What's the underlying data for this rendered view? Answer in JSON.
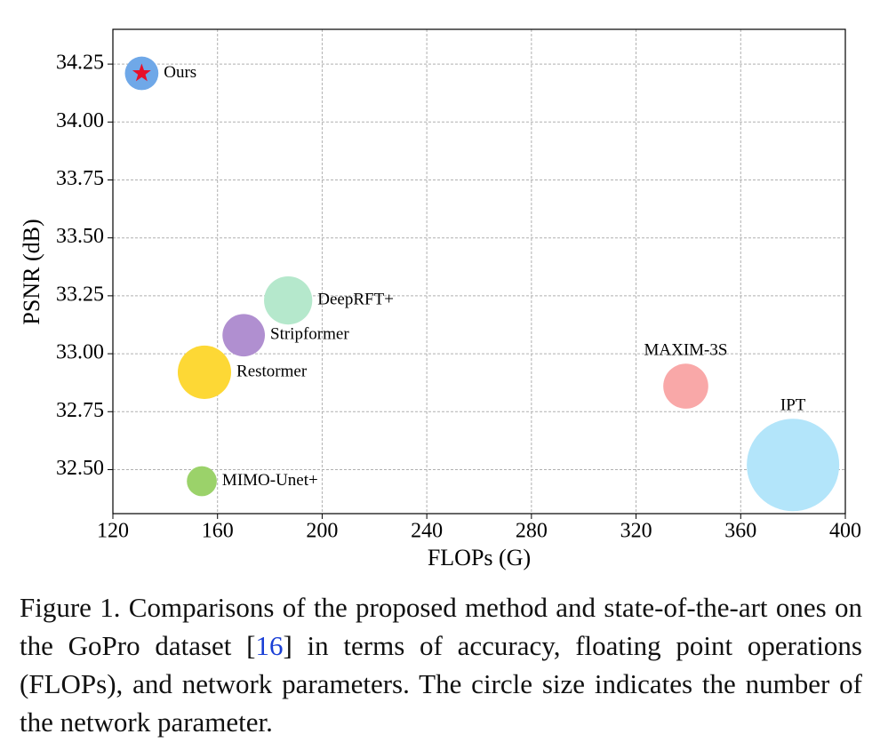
{
  "chart_data": {
    "type": "bubble",
    "xlabel": "FLOPs (G)",
    "ylabel": "PSNR (dB)",
    "xlim": [
      120,
      400
    ],
    "xticks": [
      120,
      160,
      200,
      240,
      280,
      320,
      360,
      400
    ],
    "ylim": [
      32.31,
      34.4
    ],
    "yticks": [
      {
        "value": 32.5,
        "label": "32.50"
      },
      32.75,
      {
        "value": 33.0,
        "label": "33.00"
      },
      33.25,
      {
        "value": 33.5,
        "label": "33.50"
      },
      33.75,
      {
        "value": 34.0,
        "label": "34.00"
      },
      34.25
    ],
    "grid": true,
    "series": [
      {
        "name": "Ours",
        "color": "#6fa8e8",
        "x": [
          131
        ],
        "values": [
          34.21
        ],
        "sizes": [
          15
        ]
      },
      {
        "name": "DeepRFT+",
        "color": "#b5e8cc",
        "x": [
          187
        ],
        "values": [
          33.23
        ],
        "sizes": [
          31
        ]
      },
      {
        "name": "Stripformer",
        "color": "#b08fd0",
        "x": [
          170
        ],
        "values": [
          33.08
        ],
        "sizes": [
          24
        ]
      },
      {
        "name": "Restormer",
        "color": "#fdd835",
        "x": [
          155
        ],
        "values": [
          32.92
        ],
        "sizes": [
          38
        ]
      },
      {
        "name": "MAXIM-3S",
        "color": "#f9a8a8",
        "x": [
          339
        ],
        "values": [
          32.86
        ],
        "sizes": [
          27
        ]
      },
      {
        "name": "IPT",
        "color": "#b3e5fa",
        "x": [
          380
        ],
        "values": [
          32.52
        ],
        "sizes": [
          114
        ]
      },
      {
        "name": "MIMO-Unet+",
        "color": "#9bd26a",
        "x": [
          154
        ],
        "values": [
          32.45
        ],
        "sizes": [
          12
        ]
      }
    ],
    "marker_color": "#e8102a"
  },
  "caption": {
    "before": "Figure 1. Comparisons of the proposed method and state-of-the-art ones on the GoPro dataset [",
    "ref": "16",
    "after": "] in terms of accuracy, floating point operations (FLOPs), and network parameters. The circle size indicates the number of the network parameter."
  }
}
